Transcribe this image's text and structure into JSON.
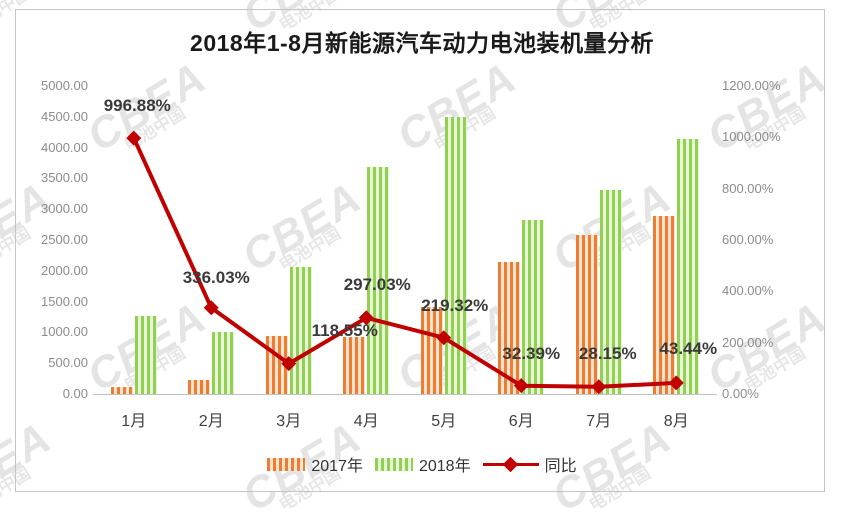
{
  "page": {
    "watermark": {
      "brand": "CBEA",
      "caption": "电池中国"
    }
  },
  "chart_data": {
    "type": "bar",
    "title": "2018年1-8月新能源汽车动力电池装机量分析",
    "categories": [
      "1月",
      "2月",
      "3月",
      "4月",
      "5月",
      "6月",
      "7月",
      "8月"
    ],
    "series": [
      {
        "name": "2017年",
        "type": "bar",
        "axis": "left",
        "color": "#ED7D31",
        "stripe_bg": "#FAE3D0",
        "values": [
          116,
          230,
          943,
          929,
          1406,
          2138,
          2583,
          2886
        ]
      },
      {
        "name": "2018年",
        "type": "bar",
        "axis": "left",
        "color": "#92D050",
        "stripe_bg": "#E9F5DA",
        "values": [
          1270,
          1005,
          2060,
          3690,
          4490,
          2830,
          3310,
          4140
        ]
      },
      {
        "name": "同比",
        "type": "line",
        "axis": "right",
        "color": "#C00000",
        "values": [
          996.88,
          336.03,
          118.55,
          297.03,
          219.32,
          32.39,
          28.15,
          43.44
        ],
        "point_labels": [
          "996.88%",
          "336.03%",
          "118.55%",
          "297.03%",
          "219.32%",
          "32.39%",
          "28.15%",
          "43.44%"
        ]
      }
    ],
    "left_axis": {
      "min": 0,
      "max": 5000,
      "ticks": [
        "5000.00",
        "4500.00",
        "4000.00",
        "3500.00",
        "3000.00",
        "2500.00",
        "2000.00",
        "1500.00",
        "1000.00",
        "500.00",
        "0.00"
      ]
    },
    "right_axis": {
      "min": 0,
      "max": 1200,
      "ticks": [
        "1200.00%",
        "1000.00%",
        "800.00%",
        "600.00%",
        "400.00%",
        "200.00%",
        "0.00%"
      ]
    },
    "legend_position": "bottom",
    "grid": false
  }
}
